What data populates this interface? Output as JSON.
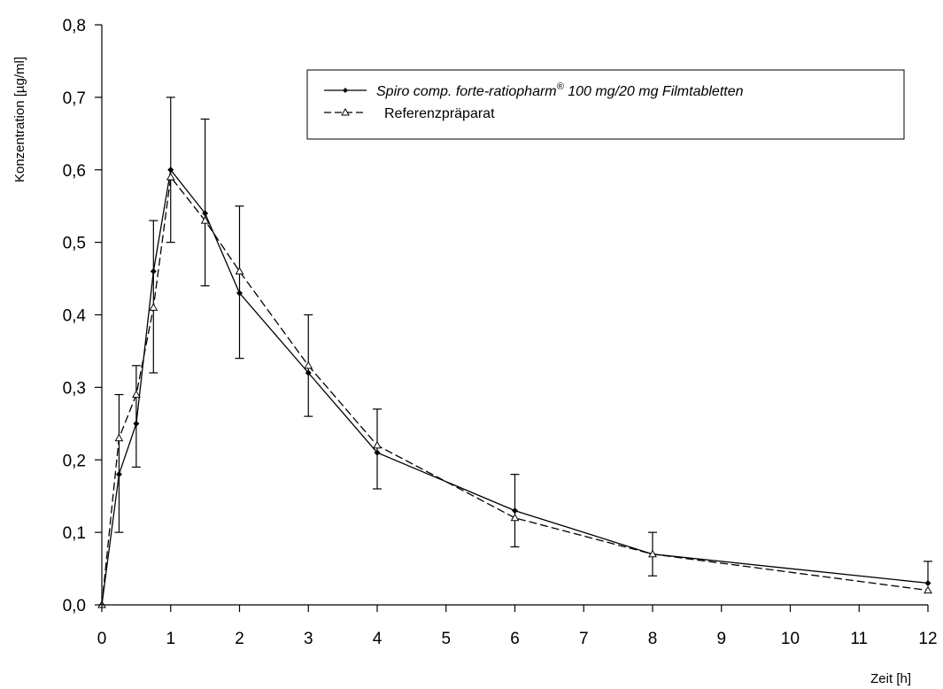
{
  "chart_data": {
    "type": "line",
    "xlabel": "Zeit [h]",
    "ylabel": "Konzentration [µg/ml]",
    "xlim": [
      0,
      12
    ],
    "ylim": [
      0,
      0.8
    ],
    "x_ticks": [
      "0",
      "1",
      "2",
      "3",
      "4",
      "5",
      "6",
      "7",
      "8",
      "9",
      "10",
      "11",
      "12"
    ],
    "y_ticks": [
      "0,0",
      "0,1",
      "0,2",
      "0,3",
      "0,4",
      "0,5",
      "0,6",
      "0,7",
      "0,8"
    ],
    "grid": false,
    "legend_position": "top-right",
    "legend": {
      "series_1_main": "Spiro comp. forte-ratiopharm",
      "series_1_sup": "®",
      "series_1_tail": " 100 mg/20 mg Filmtabletten",
      "series_2": "Referenzpräparat"
    },
    "series": [
      {
        "style": "solid",
        "marker": "filled-diamond",
        "x": [
          0,
          0.25,
          0.5,
          0.75,
          1,
          1.5,
          2,
          3,
          4,
          6,
          8,
          12
        ],
        "y": [
          0.0,
          0.18,
          0.25,
          0.46,
          0.6,
          0.54,
          0.43,
          0.32,
          0.21,
          0.13,
          0.07,
          0.03
        ],
        "error_low": [
          null,
          0.1,
          0.19,
          0.32,
          0.5,
          0.44,
          0.34,
          0.26,
          0.16,
          0.08,
          0.04,
          null
        ],
        "error_high": [
          null,
          0.29,
          0.33,
          0.53,
          0.7,
          0.67,
          0.55,
          0.4,
          0.27,
          0.18,
          0.1,
          0.06
        ]
      },
      {
        "style": "dashed",
        "marker": "open-triangle",
        "x": [
          0,
          0.25,
          0.5,
          0.75,
          1,
          1.5,
          2,
          3,
          4,
          6,
          8,
          12
        ],
        "y": [
          0.0,
          0.23,
          0.29,
          0.41,
          0.59,
          0.53,
          0.46,
          0.33,
          0.22,
          0.12,
          0.07,
          0.02
        ]
      }
    ]
  }
}
